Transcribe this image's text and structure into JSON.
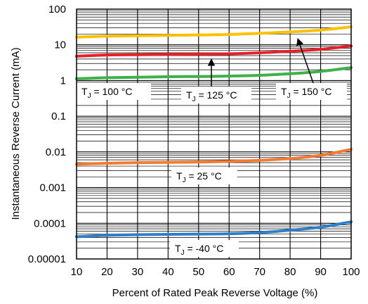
{
  "chart_data": {
    "type": "line",
    "xlabel": "Percent of Rated Peak Reverse Voltage (%)",
    "ylabel": "Instantaneous Reverse Current (mA)",
    "xlim": [
      10,
      100
    ],
    "ylim": [
      1e-05,
      100
    ],
    "yscale": "log",
    "grid": true,
    "x_ticks": [
      "10",
      "20",
      "30",
      "40",
      "50",
      "60",
      "70",
      "80",
      "90",
      "100"
    ],
    "y_ticks": [
      "0.00001",
      "0.0001",
      "0.001",
      "0.01",
      "0.1",
      "1",
      "10",
      "100"
    ],
    "x": [
      10,
      20,
      30,
      40,
      50,
      60,
      70,
      80,
      90,
      100
    ],
    "series": [
      {
        "name": "T_J = 150 °C",
        "color": "#ffc000",
        "values": [
          16.5,
          17.5,
          18,
          18.5,
          19,
          19.5,
          21,
          23,
          26,
          32
        ]
      },
      {
        "name": "T_J = 125 °C",
        "color": "#e8202a",
        "values": [
          4.8,
          5.2,
          5.3,
          5.4,
          5.5,
          5.6,
          6.0,
          6.6,
          7.5,
          9.3
        ]
      },
      {
        "name": "T_J = 100 °C",
        "color": "#3db04a",
        "values": [
          1.12,
          1.2,
          1.24,
          1.28,
          1.3,
          1.33,
          1.4,
          1.55,
          1.8,
          2.3
        ]
      },
      {
        "name": "T_J = 25 °C",
        "color": "#f47a30",
        "values": [
          0.0045,
          0.0048,
          0.005,
          0.0051,
          0.0052,
          0.0054,
          0.0058,
          0.0065,
          0.008,
          0.0118
        ]
      },
      {
        "name": "T_J = -40 °C",
        "color": "#2f7fc8",
        "values": [
          4.2e-05,
          4.6e-05,
          4.8e-05,
          4.9e-05,
          5e-05,
          5.1e-05,
          5.5e-05,
          6.4e-05,
          7.8e-05,
          0.00011
        ]
      }
    ],
    "annotations": [
      {
        "sub": "J",
        "rest": " = 100 °C",
        "series": "T_J = 100 °C"
      },
      {
        "sub": "J",
        "rest": " = 125 °C",
        "series": "T_J = 125 °C"
      },
      {
        "sub": "J",
        "rest": " = 150 °C",
        "series": "T_J = 150 °C"
      },
      {
        "sub": "J",
        "rest": " = 25 °C",
        "series": "T_J = 25 °C"
      },
      {
        "sub": "J",
        "rest": " = -40 °C",
        "series": "T_J = -40 °C"
      }
    ]
  }
}
